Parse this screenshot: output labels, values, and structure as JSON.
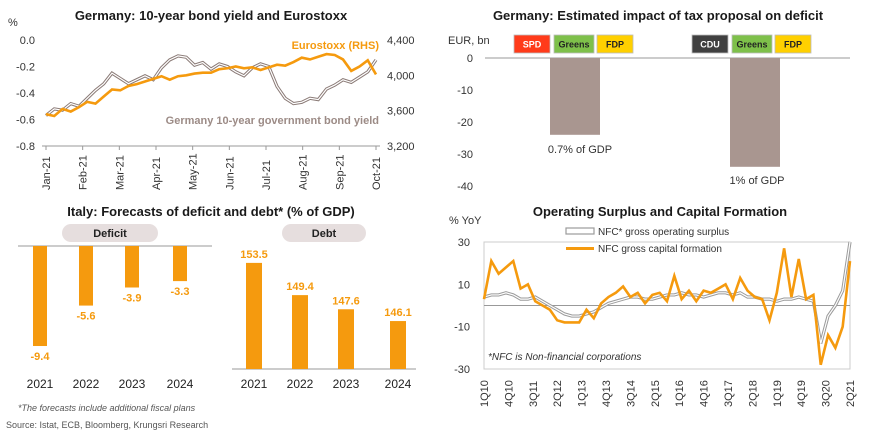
{
  "footnote": "*The forecasts include additional fiscal plans",
  "source": "Source: Istat, ECB, Bloomberg, Krungsri Research",
  "colors": {
    "orange": "#f59a0e",
    "gray": "#a9a9a9",
    "taupe": "#a99690",
    "spd": "#ff3b1a",
    "greens": "#7ec04a",
    "fdp": "#ffd000",
    "cdu": "#404040",
    "pill": "#e6dede"
  },
  "chart_data": [
    {
      "type": "line",
      "title": "Germany: 10-year bond yield and Eurostoxx",
      "ylabel": "%",
      "ylim": [
        -0.8,
        0.0
      ],
      "y_ticks": [
        "0.0",
        "-0.2",
        "-0.4",
        "-0.6",
        "-0.8"
      ],
      "y2lim": [
        3200,
        4400
      ],
      "y2_ticks": [
        "4,400",
        "4,000",
        "3,600",
        "3,200"
      ],
      "x_ticks": [
        "Jan-21",
        "Feb-21",
        "Mar-21",
        "Apr-21",
        "May-21",
        "Jun-21",
        "Jul-21",
        "Aug-21",
        "Sep-21",
        "Oct-21"
      ],
      "series": [
        {
          "name": "Eurostoxx (RHS)",
          "axis": "right",
          "values": [
            3560,
            3540,
            3620,
            3590,
            3640,
            3700,
            3680,
            3760,
            3840,
            3830,
            3880,
            3900,
            3930,
            3960,
            3990,
            3950,
            3990,
            4000,
            4020,
            4030,
            4030,
            4070,
            4080,
            4100,
            4080,
            4090,
            4060,
            4090,
            4120,
            4110,
            4150,
            4200,
            4180,
            4210,
            4240,
            4230,
            4180,
            4050,
            4100,
            4170,
            4010
          ]
        },
        {
          "name": "Germany 10-year government bond yield",
          "axis": "left",
          "values": [
            -0.57,
            -0.52,
            -0.53,
            -0.48,
            -0.5,
            -0.44,
            -0.38,
            -0.33,
            -0.25,
            -0.29,
            -0.33,
            -0.3,
            -0.27,
            -0.3,
            -0.21,
            -0.15,
            -0.12,
            -0.13,
            -0.19,
            -0.17,
            -0.22,
            -0.18,
            -0.2,
            -0.24,
            -0.27,
            -0.21,
            -0.18,
            -0.2,
            -0.35,
            -0.44,
            -0.48,
            -0.47,
            -0.44,
            -0.45,
            -0.37,
            -0.34,
            -0.3,
            -0.32,
            -0.28,
            -0.24,
            -0.15
          ]
        }
      ]
    },
    {
      "type": "bar",
      "title": "Germany: Estimated impact of tax proposal on deficit",
      "ylabel": "EUR, bn",
      "ylim": [
        -40,
        0
      ],
      "y_ticks": [
        "0",
        "-10",
        "-20",
        "-30",
        "-40"
      ],
      "coalitions": [
        {
          "parties": [
            "SPD",
            "Greens",
            "FDP"
          ],
          "value": -24,
          "label": "0.7% of GDP"
        },
        {
          "parties": [
            "CDU",
            "Greens",
            "FDP"
          ],
          "value": -34,
          "label": "1% of GDP"
        }
      ]
    },
    {
      "type": "bar",
      "title": "Italy: Forecasts of deficit and debt* (% of GDP)",
      "panels": [
        {
          "name": "Deficit",
          "categories": [
            "2021",
            "2022",
            "2023",
            "2024"
          ],
          "values": [
            -9.4,
            -5.6,
            -3.9,
            -3.3
          ],
          "labels": [
            "-9.4",
            "-5.6",
            "-3.9",
            "-3.3"
          ]
        },
        {
          "name": "Debt",
          "categories": [
            "2021",
            "2022",
            "2023",
            "2024"
          ],
          "values": [
            153.5,
            149.4,
            147.6,
            146.1
          ],
          "labels": [
            "153.5",
            "149.4",
            "147.6",
            "146.1"
          ]
        }
      ]
    },
    {
      "type": "line",
      "title": "Operating Surplus and Capital Formation",
      "ylabel": "% YoY",
      "ylim": [
        -30,
        30
      ],
      "y_ticks": [
        "30",
        "10",
        "-10",
        "-30"
      ],
      "x_ticks": [
        "1Q10",
        "4Q10",
        "3Q11",
        "2Q12",
        "1Q13",
        "4Q13",
        "3Q14",
        "2Q15",
        "1Q16",
        "4Q16",
        "3Q17",
        "2Q18",
        "1Q19",
        "4Q19",
        "3Q20",
        "2Q21"
      ],
      "annotation": "*NFC is Non-financial corporations",
      "series": [
        {
          "name": "NFC* gross operating  surplus",
          "values": [
            4,
            5,
            5,
            6,
            5,
            3,
            3,
            4,
            2,
            0,
            -2,
            -4,
            -5,
            -5,
            -4,
            -3,
            -1,
            1,
            2,
            3,
            4,
            4,
            3,
            3,
            4,
            5,
            5,
            6,
            5,
            5,
            4,
            5,
            6,
            6,
            5,
            6,
            4,
            4,
            3,
            3,
            2,
            3,
            3,
            4,
            3,
            2,
            -18,
            -5,
            0,
            7,
            32
          ]
        },
        {
          "name": "NFC gross capital formation",
          "values": [
            3,
            21,
            15,
            18,
            21,
            8,
            10,
            2,
            0,
            -2,
            -7,
            -8,
            -8,
            -8,
            -2,
            -6,
            1,
            4,
            6,
            9,
            4,
            6,
            1,
            5,
            6,
            2,
            14,
            3,
            7,
            2,
            7,
            6,
            8,
            10,
            3,
            13,
            7,
            4,
            3,
            -7,
            6,
            27,
            4,
            22,
            3,
            5,
            -28,
            -14,
            -20,
            -10,
            21
          ]
        }
      ]
    }
  ]
}
